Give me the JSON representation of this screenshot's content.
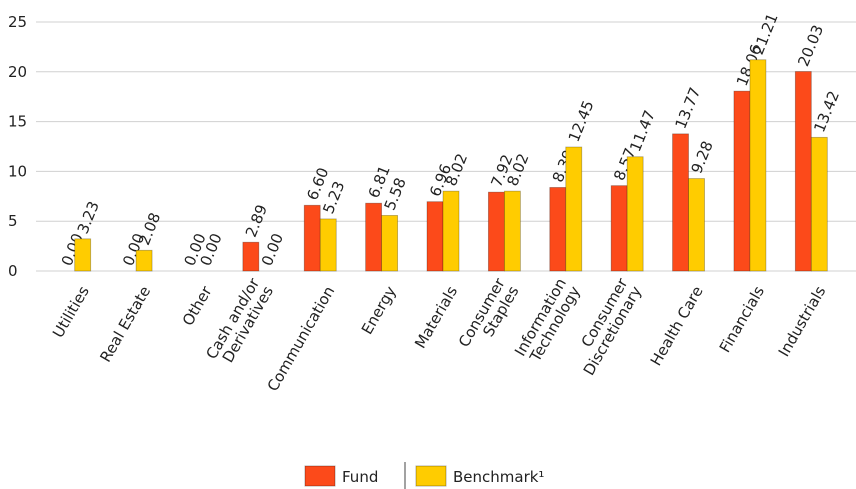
{
  "chart_data": {
    "type": "bar",
    "categories": [
      [
        "Utilities"
      ],
      [
        "Real Estate"
      ],
      [
        "Other"
      ],
      [
        "Cash and/or",
        "Derivatives"
      ],
      [
        "Communication"
      ],
      [
        "Energy"
      ],
      [
        "Materials"
      ],
      [
        "Consumer",
        "Staples"
      ],
      [
        "Information",
        "Technology"
      ],
      [
        "Consumer",
        "Discretionary"
      ],
      [
        "Health Care"
      ],
      [
        "Financials"
      ],
      [
        "Industrials"
      ]
    ],
    "series": [
      {
        "name": "Fund",
        "color": "#fc4a1a",
        "values": [
          0,
          0,
          0,
          2.89,
          6.6,
          6.81,
          6.96,
          7.92,
          8.39,
          8.57,
          13.77,
          18.06,
          20.03
        ],
        "value_labels": [
          "0.00",
          "0.00",
          "0.00",
          "2.89",
          "6.60",
          "6.81",
          "6.96",
          "7.92",
          "8.39",
          "8.57",
          "13.77",
          "18.06",
          "20.03"
        ]
      },
      {
        "name": "Benchmark¹",
        "color": "#ffcc00",
        "values": [
          3.23,
          2.08,
          0,
          0,
          5.23,
          5.58,
          8.02,
          8.02,
          12.45,
          11.47,
          9.28,
          21.21,
          13.42
        ],
        "value_labels": [
          "3.23",
          "2.08",
          "0.00",
          "0.00",
          "5.23",
          "5.58",
          "8.02",
          "8.02",
          "12.45",
          "11.47",
          "9.28",
          "21.21",
          "13.42"
        ]
      }
    ],
    "ylim": [
      0,
      25
    ],
    "yticks": [
      0,
      5,
      10,
      15,
      20,
      25
    ],
    "grid": true
  }
}
